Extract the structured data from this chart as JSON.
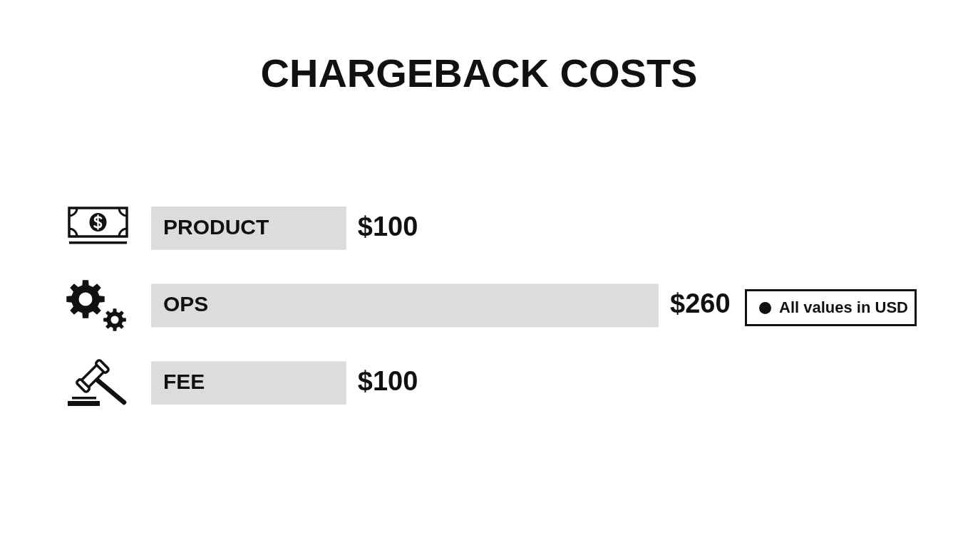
{
  "chart_data": {
    "type": "bar",
    "orientation": "horizontal",
    "title": "CHARGEBACK COSTS",
    "categories": [
      "PRODUCT",
      "OPS",
      "FEE"
    ],
    "values": [
      100,
      260,
      100
    ],
    "value_labels": [
      "$100",
      "$260",
      "$100"
    ],
    "color": "#dcdcdc",
    "annotations": [
      "All values in USD"
    ]
  }
}
